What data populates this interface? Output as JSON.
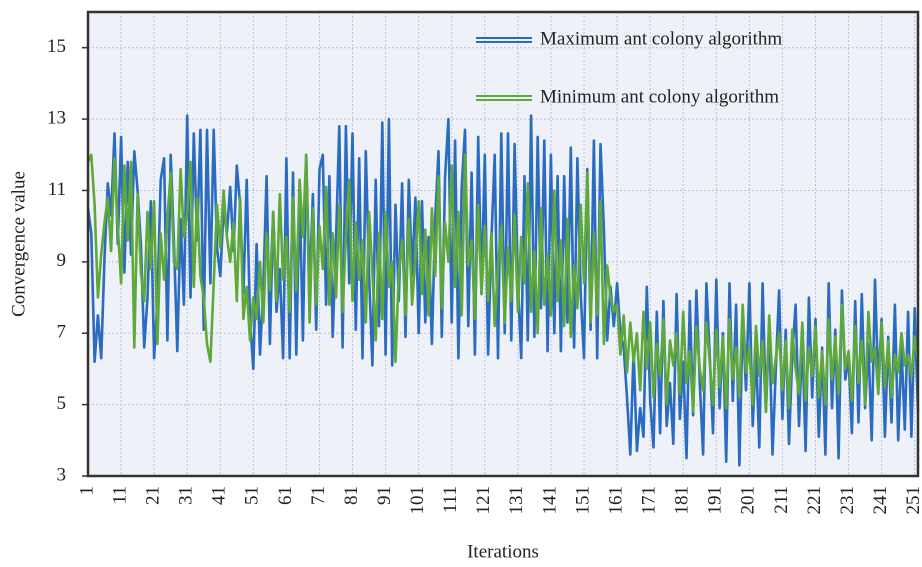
{
  "chart_data": {
    "type": "line",
    "xlabel": "Iterations",
    "ylabel": "Convergence value",
    "xlim": [
      1,
      252
    ],
    "xticks": [
      1,
      11,
      21,
      31,
      41,
      51,
      61,
      71,
      81,
      91,
      101,
      111,
      121,
      131,
      141,
      151,
      161,
      171,
      181,
      191,
      201,
      211,
      221,
      231,
      241,
      251
    ],
    "ylim": [
      3,
      16
    ],
    "yticks": [
      3,
      5,
      7,
      9,
      11,
      13,
      15
    ],
    "grid": true,
    "legend": "upper right",
    "x": [
      1,
      2,
      3,
      4,
      5,
      6,
      7,
      8,
      9,
      10,
      11,
      12,
      13,
      14,
      15,
      16,
      17,
      18,
      19,
      20,
      21,
      22,
      23,
      24,
      25,
      26,
      27,
      28,
      29,
      30,
      31,
      32,
      33,
      34,
      35,
      36,
      37,
      38,
      39,
      40,
      41,
      42,
      43,
      44,
      45,
      46,
      47,
      48,
      49,
      50,
      51,
      52,
      53,
      54,
      55,
      56,
      57,
      58,
      59,
      60,
      61,
      62,
      63,
      64,
      65,
      66,
      67,
      68,
      69,
      70,
      71,
      72,
      73,
      74,
      75,
      76,
      77,
      78,
      79,
      80,
      81,
      82,
      83,
      84,
      85,
      86,
      87,
      88,
      89,
      90,
      91,
      92,
      93,
      94,
      95,
      96,
      97,
      98,
      99,
      100,
      101,
      102,
      103,
      104,
      105,
      106,
      107,
      108,
      109,
      110,
      111,
      112,
      113,
      114,
      115,
      116,
      117,
      118,
      119,
      120,
      121,
      122,
      123,
      124,
      125,
      126,
      127,
      128,
      129,
      130,
      131,
      132,
      133,
      134,
      135,
      136,
      137,
      138,
      139,
      140,
      141,
      142,
      143,
      144,
      145,
      146,
      147,
      148,
      149,
      150,
      151,
      152,
      153,
      154,
      155,
      156,
      157,
      158,
      159,
      160,
      161,
      162,
      163,
      164,
      165,
      166,
      167,
      168,
      169,
      170,
      171,
      172,
      173,
      174,
      175,
      176,
      177,
      178,
      179,
      180,
      181,
      182,
      183,
      184,
      185,
      186,
      187,
      188,
      189,
      190,
      191,
      192,
      193,
      194,
      195,
      196,
      197,
      198,
      199,
      200,
      201,
      202,
      203,
      204,
      205,
      206,
      207,
      208,
      209,
      210,
      211,
      212,
      213,
      214,
      215,
      216,
      217,
      218,
      219,
      220,
      221,
      222,
      223,
      224,
      225,
      226,
      227,
      228,
      229,
      230,
      231,
      232,
      233,
      234,
      235,
      236,
      237,
      238,
      239,
      240,
      241,
      242,
      243,
      244,
      245,
      246,
      247,
      248,
      249,
      250,
      251,
      252
    ],
    "series": [
      {
        "name": "Maximum ant colony algorithm",
        "color": "#2b6cc0",
        "values": [
          10.5,
          9.8,
          6.2,
          7.5,
          6.3,
          9.1,
          11.2,
          10.3,
          12.6,
          9.5,
          12.5,
          8.7,
          11.8,
          9.2,
          12.1,
          11.0,
          9.5,
          6.6,
          8.0,
          10.7,
          6.3,
          7.9,
          11.3,
          11.9,
          6.8,
          12.0,
          9.5,
          6.5,
          10.2,
          7.8,
          13.1,
          8.0,
          12.6,
          9.6,
          12.7,
          7.1,
          12.7,
          8.4,
          12.7,
          9.4,
          8.6,
          10.5,
          9.8,
          11.1,
          9.3,
          11.7,
          10.6,
          8.1,
          11.3,
          7.4,
          6.0,
          9.5,
          6.4,
          8.3,
          11.4,
          6.7,
          10.4,
          7.6,
          8.8,
          6.3,
          11.9,
          6.3,
          11.5,
          6.4,
          11.0,
          6.8,
          12.0,
          8.2,
          10.9,
          7.1,
          11.6,
          12.0,
          7.8,
          11.4,
          6.9,
          9.6,
          12.8,
          6.6,
          12.8,
          8.4,
          12.6,
          7.1,
          11.9,
          6.3,
          12.1,
          8.6,
          6.1,
          11.3,
          7.2,
          12.9,
          6.4,
          13.0,
          6.1,
          10.6,
          7.9,
          11.2,
          6.9,
          11.3,
          8.6,
          10.8,
          7.0,
          10.7,
          7.3,
          9.7,
          6.7,
          10.2,
          12.1,
          6.9,
          11.4,
          13.0,
          7.3,
          12.4,
          6.3,
          11.1,
          12.7,
          7.2,
          11.5,
          6.4,
          12.5,
          8.1,
          12.0,
          6.4,
          9.6,
          12.0,
          6.3,
          12.6,
          7.0,
          12.6,
          6.8,
          12.3,
          8.4,
          6.3,
          11.4,
          6.8,
          13.1,
          6.9,
          12.5,
          7.7,
          12.4,
          6.5,
          12.0,
          7.0,
          11.4,
          6.5,
          11.4,
          7.3,
          12.2,
          6.6,
          11.9,
          8.1,
          6.3,
          11.6,
          7.1,
          12.4,
          6.3,
          12.3,
          9.9,
          6.8,
          8.3,
          7.2,
          8.4,
          7.0,
          6.6,
          5.2,
          3.6,
          6.5,
          3.7,
          4.9,
          4.1,
          8.3,
          5.1,
          3.8,
          7.6,
          4.2,
          7.9,
          4.4,
          5.6,
          3.9,
          8.1,
          4.6,
          6.2,
          3.5,
          7.9,
          4.7,
          8.2,
          5.6,
          3.6,
          8.4,
          6.4,
          4.2,
          8.5,
          4.9,
          7.0,
          3.4,
          8.4,
          5.1,
          7.8,
          3.3,
          7.5,
          5.4,
          8.4,
          4.4,
          6.5,
          3.8,
          8.4,
          4.8,
          7.2,
          3.6,
          6.0,
          8.2,
          4.6,
          7.1,
          3.9,
          6.4,
          7.8,
          4.4,
          6.9,
          3.7,
          8.0,
          5.2,
          7.4,
          4.1,
          6.6,
          3.6,
          8.4,
          4.9,
          7.1,
          3.5,
          8.2,
          5.7,
          6.3,
          4.2,
          7.9,
          4.5,
          8.1,
          4.9,
          6.7,
          4.0,
          8.5,
          5.5,
          7.4,
          4.1,
          6.9,
          4.5,
          7.8,
          4.0,
          6.6,
          4.3,
          7.6,
          4.1,
          7.7,
          4.8
        ]
      },
      {
        "name": "Minimum ant colony algorithm",
        "color": "#5fa83a",
        "values": [
          11.8,
          12.0,
          10.6,
          8.0,
          9.2,
          10.1,
          10.8,
          9.3,
          11.9,
          10.0,
          8.4,
          11.7,
          9.6,
          11.8,
          6.6,
          10.9,
          8.7,
          7.9,
          10.4,
          8.8,
          10.7,
          6.7,
          9.8,
          8.5,
          10.2,
          11.5,
          9.0,
          8.8,
          11.6,
          9.7,
          10.4,
          11.8,
          8.3,
          10.8,
          8.6,
          8.0,
          6.7,
          6.2,
          8.4,
          10.6,
          9.4,
          11.0,
          9.7,
          9.0,
          10.1,
          7.9,
          10.8,
          7.4,
          8.3,
          6.8,
          8.0,
          7.4,
          9.0,
          7.3,
          9.8,
          8.2,
          10.4,
          7.9,
          10.9,
          8.5,
          9.7,
          7.6,
          10.8,
          8.2,
          11.3,
          9.7,
          12.0,
          7.3,
          10.5,
          7.8,
          10.0,
          8.8,
          11.1,
          7.8,
          9.8,
          8.0,
          10.6,
          7.6,
          9.7,
          11.3,
          7.9,
          10.1,
          8.5,
          9.6,
          7.3,
          10.4,
          8.7,
          6.8,
          9.8,
          7.4,
          10.4,
          8.3,
          9.0,
          6.2,
          8.7,
          9.6,
          7.5,
          10.2,
          7.8,
          9.1,
          10.7,
          8.1,
          9.9,
          7.5,
          10.5,
          8.6,
          11.4,
          7.7,
          10.1,
          9.0,
          11.7,
          8.3,
          10.4,
          7.5,
          12.0,
          8.9,
          9.6,
          7.4,
          10.6,
          8.1,
          10.0,
          7.9,
          9.8,
          7.2,
          8.9,
          10.0,
          7.3,
          9.4,
          7.9,
          10.3,
          7.6,
          9.7,
          8.4,
          11.2,
          7.6,
          9.3,
          7.0,
          10.5,
          7.8,
          9.2,
          7.5,
          11.0,
          7.9,
          9.6,
          7.2,
          10.2,
          6.9,
          8.9,
          7.7,
          10.6,
          8.4,
          11.5,
          7.3,
          9.8,
          7.5,
          10.7,
          6.7,
          8.9,
          8.0,
          7.6,
          7.8,
          6.4,
          7.5,
          5.9,
          7.3,
          6.2,
          7.0,
          5.4,
          7.6,
          6.0,
          7.3,
          5.2,
          6.7,
          5.8,
          7.4,
          5.0,
          6.8,
          6.1,
          7.0,
          5.3,
          7.6,
          5.6,
          6.5,
          4.8,
          7.2,
          6.0,
          5.4,
          7.3,
          6.2,
          5.0,
          7.1,
          5.5,
          6.9,
          4.9,
          7.4,
          5.7,
          6.6,
          5.2,
          7.8,
          5.9,
          6.6,
          5.0,
          7.2,
          5.8,
          6.8,
          4.8,
          7.5,
          5.6,
          6.3,
          7.0,
          5.4,
          6.8,
          4.9,
          7.1,
          6.0,
          5.3,
          7.3,
          5.1,
          6.6,
          5.8,
          7.2,
          5.2,
          6.5,
          5.0,
          7.4,
          5.7,
          6.9,
          5.3,
          7.8,
          6.0,
          6.5,
          5.1,
          7.2,
          5.6,
          6.8,
          5.0,
          7.6,
          6.2,
          6.6,
          5.3,
          7.3,
          5.5,
          6.8,
          5.2,
          6.4,
          5.9,
          7.0,
          6.1,
          6.4,
          5.8,
          6.9,
          6.2
        ]
      }
    ]
  }
}
